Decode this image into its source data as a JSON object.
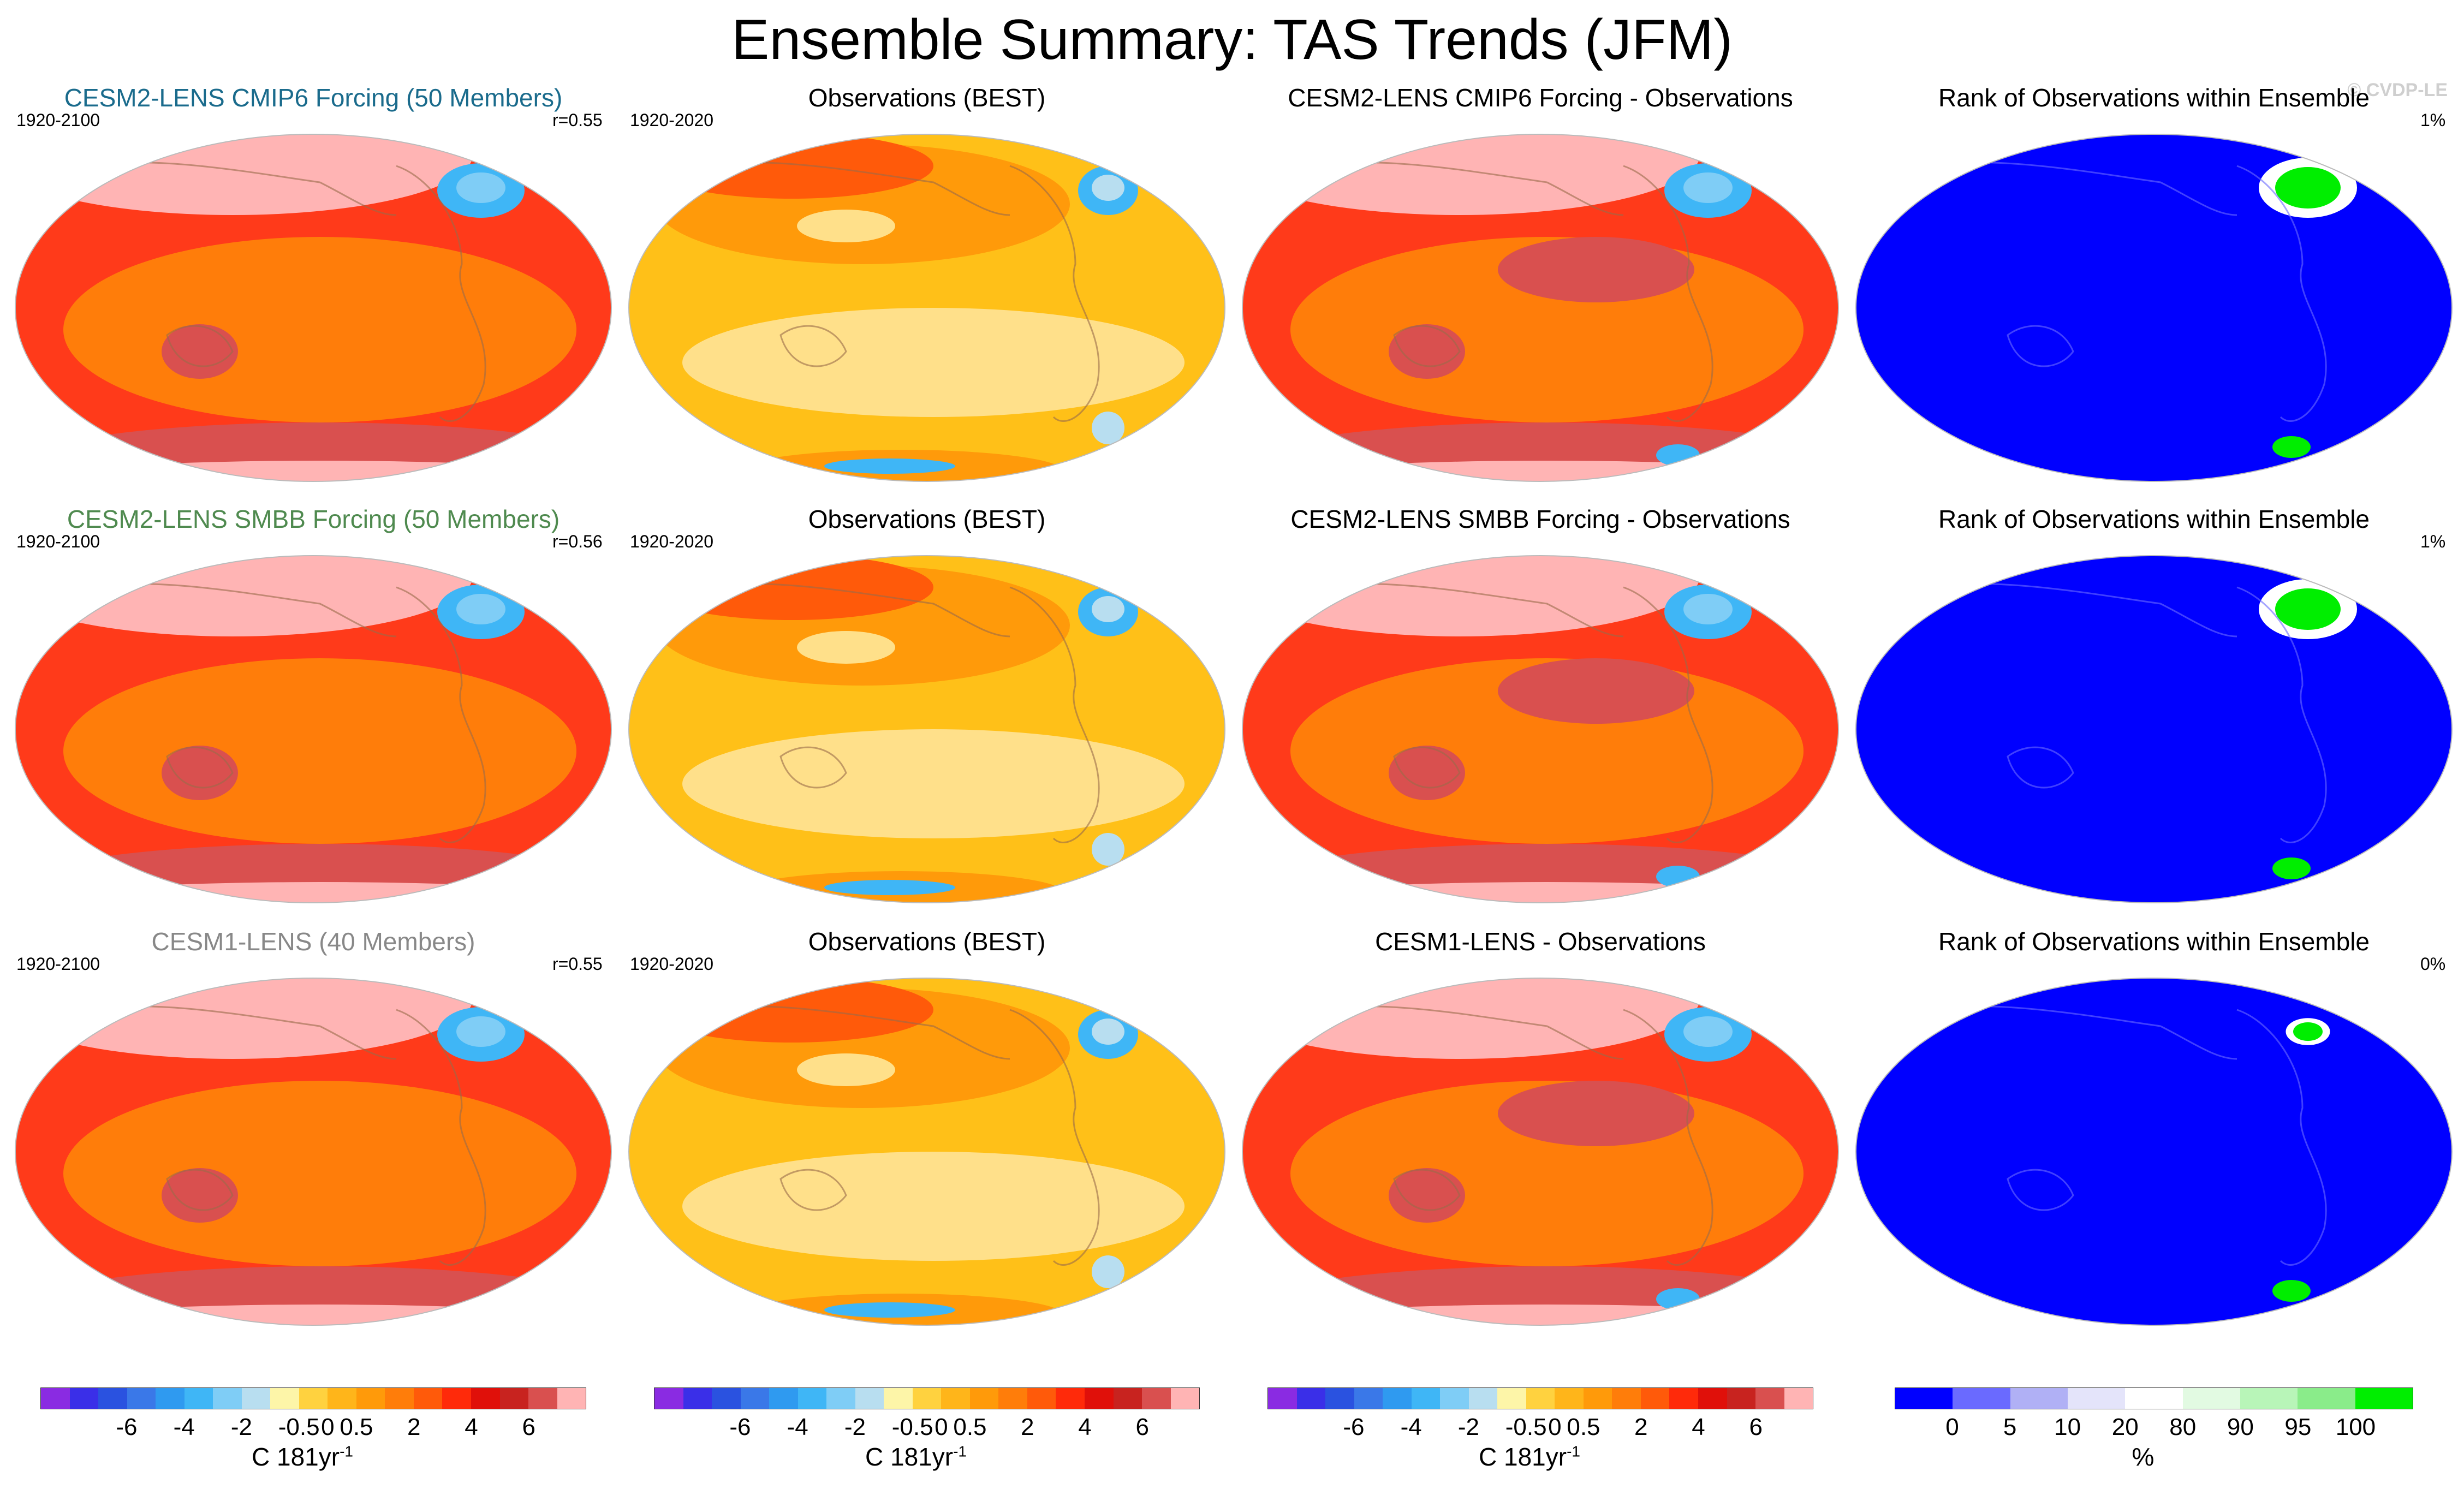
{
  "title": "Ensemble Summary: TAS Trends (JFM)",
  "watermark": "© CVDP-LE",
  "rows": [
    {
      "model_title": "CESM2-LENS CMIP6 Forcing (50 Members)",
      "model_title_color": "#1a6b8c",
      "model_years": "1920-2100",
      "corr": "r=0.55",
      "obs_title": "Observations (BEST)",
      "obs_years": "1920-2020",
      "diff_title": "CESM2-LENS CMIP6 Forcing - Observations",
      "rank_title": "Rank of Observations within Ensemble",
      "rank_pct": "1%"
    },
    {
      "model_title": "CESM2-LENS SMBB Forcing (50 Members)",
      "model_title_color": "#4f8a4f",
      "model_years": "1920-2100",
      "corr": "r=0.56",
      "obs_title": "Observations (BEST)",
      "obs_years": "1920-2020",
      "diff_title": "CESM2-LENS SMBB Forcing - Observations",
      "rank_title": "Rank of Observations within Ensemble",
      "rank_pct": "1%"
    },
    {
      "model_title": "CESM1-LENS (40 Members)",
      "model_title_color": "#888888",
      "model_years": "1920-2100",
      "corr": "r=0.55",
      "obs_title": "Observations (BEST)",
      "obs_years": "1920-2020",
      "diff_title": "CESM1-LENS - Observations",
      "rank_title": "Rank of Observations within Ensemble",
      "rank_pct": "0%"
    }
  ],
  "colorbars": {
    "tas": {
      "colors": [
        "#8a2be2",
        "#3a2fe8",
        "#2a52e0",
        "#3a78e8",
        "#2f9af0",
        "#3fb6f6",
        "#7fcdf6",
        "#b8def0",
        "#fdf5a8",
        "#ffd23f",
        "#ffb51a",
        "#ff9a0a",
        "#ff7d0a",
        "#ff5a0a",
        "#ff2a0a",
        "#e0100a",
        "#c8231f",
        "#d9504f",
        "#ffb4b4"
      ],
      "ticks": [
        "-6",
        "-4",
        "-2",
        "-0.5",
        "0",
        "0.5",
        "2",
        "4",
        "6"
      ],
      "label": "C 181yr",
      "label_sup": "-1"
    },
    "rank": {
      "colors": [
        "#0000ff",
        "#6a6aff",
        "#b0b0f5",
        "#e4e4fa",
        "#ffffff",
        "#e2fae2",
        "#b8f5b8",
        "#8aec8a",
        "#00ee00"
      ],
      "ticks": [
        "0",
        "5",
        "10",
        "20",
        "80",
        "90",
        "95",
        "100"
      ],
      "label": "%"
    }
  },
  "field_colors": {
    "model_bg": "#ff3a1a",
    "model_mid": "#ff7d0a",
    "model_high": "#ffb4b4",
    "model_mid2": "#d9504f",
    "model_cold": "#3fb6f6",
    "obs_bg": "#ffc018",
    "obs_mid": "#ff9a0a",
    "obs_light": "#ffe08a",
    "obs_hot": "#ff5a0a",
    "rank_bg": "#0000ff",
    "rank_green": "#00ee00",
    "rank_white": "#ffffff"
  }
}
